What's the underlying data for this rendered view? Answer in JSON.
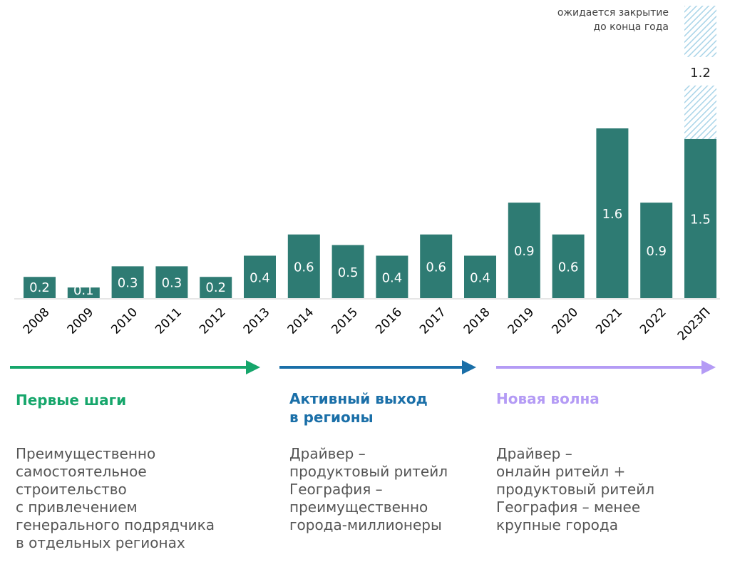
{
  "chart_data": {
    "type": "bar",
    "categories": [
      "2008",
      "2009",
      "2010",
      "2011",
      "2012",
      "2013",
      "2014",
      "2015",
      "2016",
      "2017",
      "2018",
      "2019",
      "2020",
      "2021",
      "2022",
      "2023П"
    ],
    "values": [
      0.2,
      0.1,
      0.3,
      0.3,
      0.2,
      0.4,
      0.6,
      0.5,
      0.4,
      0.6,
      0.4,
      0.9,
      0.6,
      1.6,
      0.9,
      1.5
    ],
    "value_labels": [
      "0.2",
      "0.1",
      "0.3",
      "0.3",
      "0.2",
      "0.4",
      "0.6",
      "0.5",
      "0.4",
      "0.6",
      "0.4",
      "0.9",
      "0.6",
      "1.6",
      "0.9",
      "1.5"
    ],
    "expected": {
      "category": "2023П",
      "value": 1.2,
      "label": "1.2"
    },
    "note": "ожидается закрытие\nдо конца года",
    "bar_color": "#2e7b73",
    "expected_color": "#a9d4e8",
    "grid": false
  },
  "phases": [
    {
      "title": "Первые шаги",
      "color": "#16a66b",
      "description": "Преимущественно\nсамостоятельное\nстроительство\nс привлечением\nгенерального подрядчика\nв отдельных регионах"
    },
    {
      "title": "Активный выход\nв регионы",
      "color": "#1a6fa8",
      "description": "Драйвер –\nпродуктовый ритейл\nГеография –\nпреимущественно\nгорода-миллионеры"
    },
    {
      "title": "Новая волна",
      "color": "#b49bf5",
      "description": "Драйвер –\nонлайн ритейл +\nпродуктовый ритейл\nГеография – менее\nкрупные города"
    }
  ]
}
